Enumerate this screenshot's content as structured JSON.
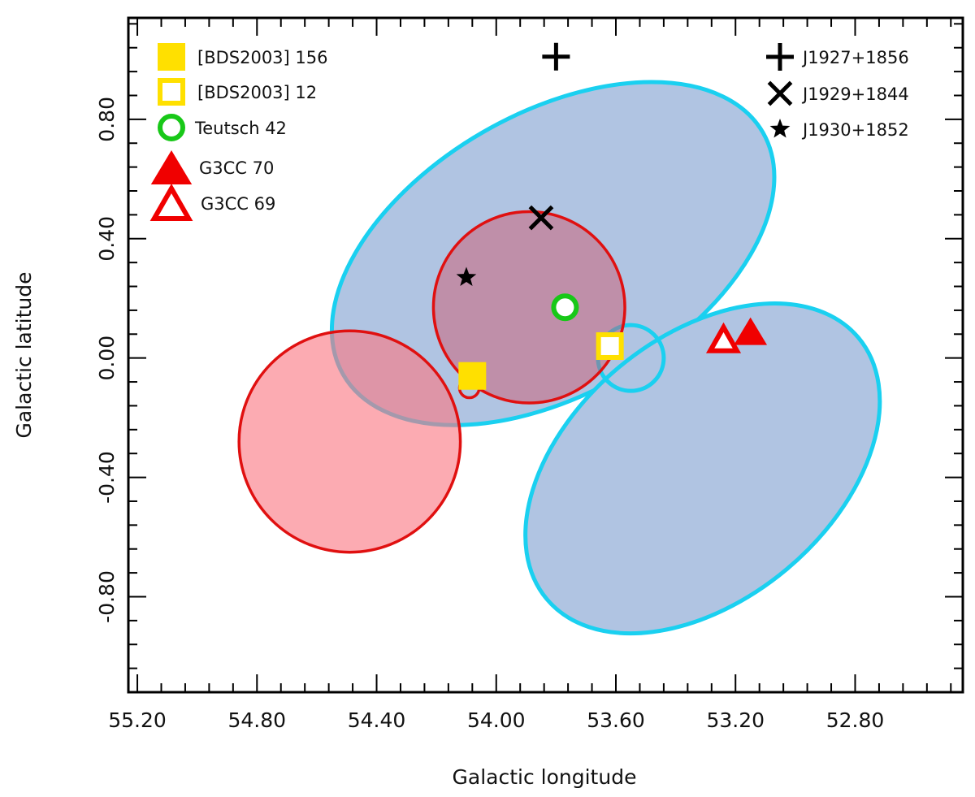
{
  "chart_data": {
    "type": "scatter",
    "title": "",
    "xlabel": "Galactic longitude",
    "ylabel": "Galactic latitude",
    "xlim": [
      55.23,
      52.44
    ],
    "ylim": [
      -1.12,
      1.14
    ],
    "x_reversed": true,
    "grid": false,
    "xticks": [
      "55.20",
      "54.80",
      "54.40",
      "54.00",
      "53.60",
      "53.20",
      "52.80"
    ],
    "xtick_values": [
      55.2,
      54.8,
      54.4,
      54.0,
      53.6,
      53.2,
      52.8
    ],
    "yticks": [
      "0.80",
      "0.40",
      "0.00",
      "-0.40",
      "-0.80"
    ],
    "ytick_values": [
      0.8,
      0.4,
      0.0,
      -0.4,
      -0.8
    ],
    "regions": [
      {
        "name": "blue-ellipse-north",
        "type": "ellipse",
        "l": 53.81,
        "b": 0.35,
        "a": 0.81,
        "b_axis": 0.47,
        "angle_deg": -30,
        "fill": "#b0c4e2",
        "stroke": "#1ad0f0"
      },
      {
        "name": "blue-ellipse-south",
        "type": "ellipse",
        "l": 53.31,
        "b": -0.37,
        "a": 0.68,
        "b_axis": 0.44,
        "angle_deg": -40,
        "fill": "#b0c4e2",
        "stroke": "#1ad0f0"
      },
      {
        "name": "cyan-small-circle",
        "type": "circle",
        "l": 53.55,
        "b": 0.0,
        "r": 0.11,
        "fill": "none",
        "stroke": "#1ad0f0"
      },
      {
        "name": "pink-circle",
        "type": "circle",
        "l": 54.49,
        "b": -0.28,
        "r": 0.37,
        "fill": "rgba(250,120,130,0.62)",
        "stroke": "#e01010"
      },
      {
        "name": "red-circle",
        "type": "circle",
        "l": 53.89,
        "b": 0.17,
        "r": 0.32,
        "fill": "rgba(210,80,100,0.45)",
        "stroke": "#e01010"
      },
      {
        "name": "small-red-circle",
        "type": "circle",
        "l": 54.09,
        "b": -0.1,
        "r": 0.033,
        "fill": "none",
        "stroke": "#e01010"
      }
    ],
    "series": [
      {
        "name": "[BDS2003] 156",
        "marker": "square-filled",
        "color": "#ffe000",
        "x": [
          54.08
        ],
        "y": [
          -0.06
        ],
        "legend": "left"
      },
      {
        "name": "[BDS2003] 12",
        "marker": "square-open",
        "color": "#ffe000",
        "x": [
          53.62
        ],
        "y": [
          0.04
        ],
        "legend": "left"
      },
      {
        "name": "Teutsch 42",
        "marker": "circle-open",
        "color": "#18c818",
        "x": [
          53.77
        ],
        "y": [
          0.17
        ],
        "legend": "left"
      },
      {
        "name": "G3CC 70",
        "marker": "triangle-filled",
        "color": "#f00000",
        "x": [
          53.15
        ],
        "y": [
          0.09
        ],
        "legend": "left"
      },
      {
        "name": "G3CC 69",
        "marker": "triangle-open",
        "color": "#f00000",
        "x": [
          53.24
        ],
        "y": [
          0.065
        ],
        "legend": "left"
      },
      {
        "name": "J1927+1856",
        "marker": "plus",
        "color": "#000000",
        "x": [
          53.8
        ],
        "y": [
          1.01
        ],
        "legend": "right"
      },
      {
        "name": "J1929+1844",
        "marker": "cross",
        "color": "#000000",
        "x": [
          53.85
        ],
        "y": [
          0.47
        ],
        "legend": "right"
      },
      {
        "name": "J1930+1852",
        "marker": "star",
        "color": "#000000",
        "x": [
          54.1
        ],
        "y": [
          0.27
        ],
        "legend": "right"
      }
    ],
    "legend_placement": [
      "top-left",
      "top-right"
    ]
  }
}
